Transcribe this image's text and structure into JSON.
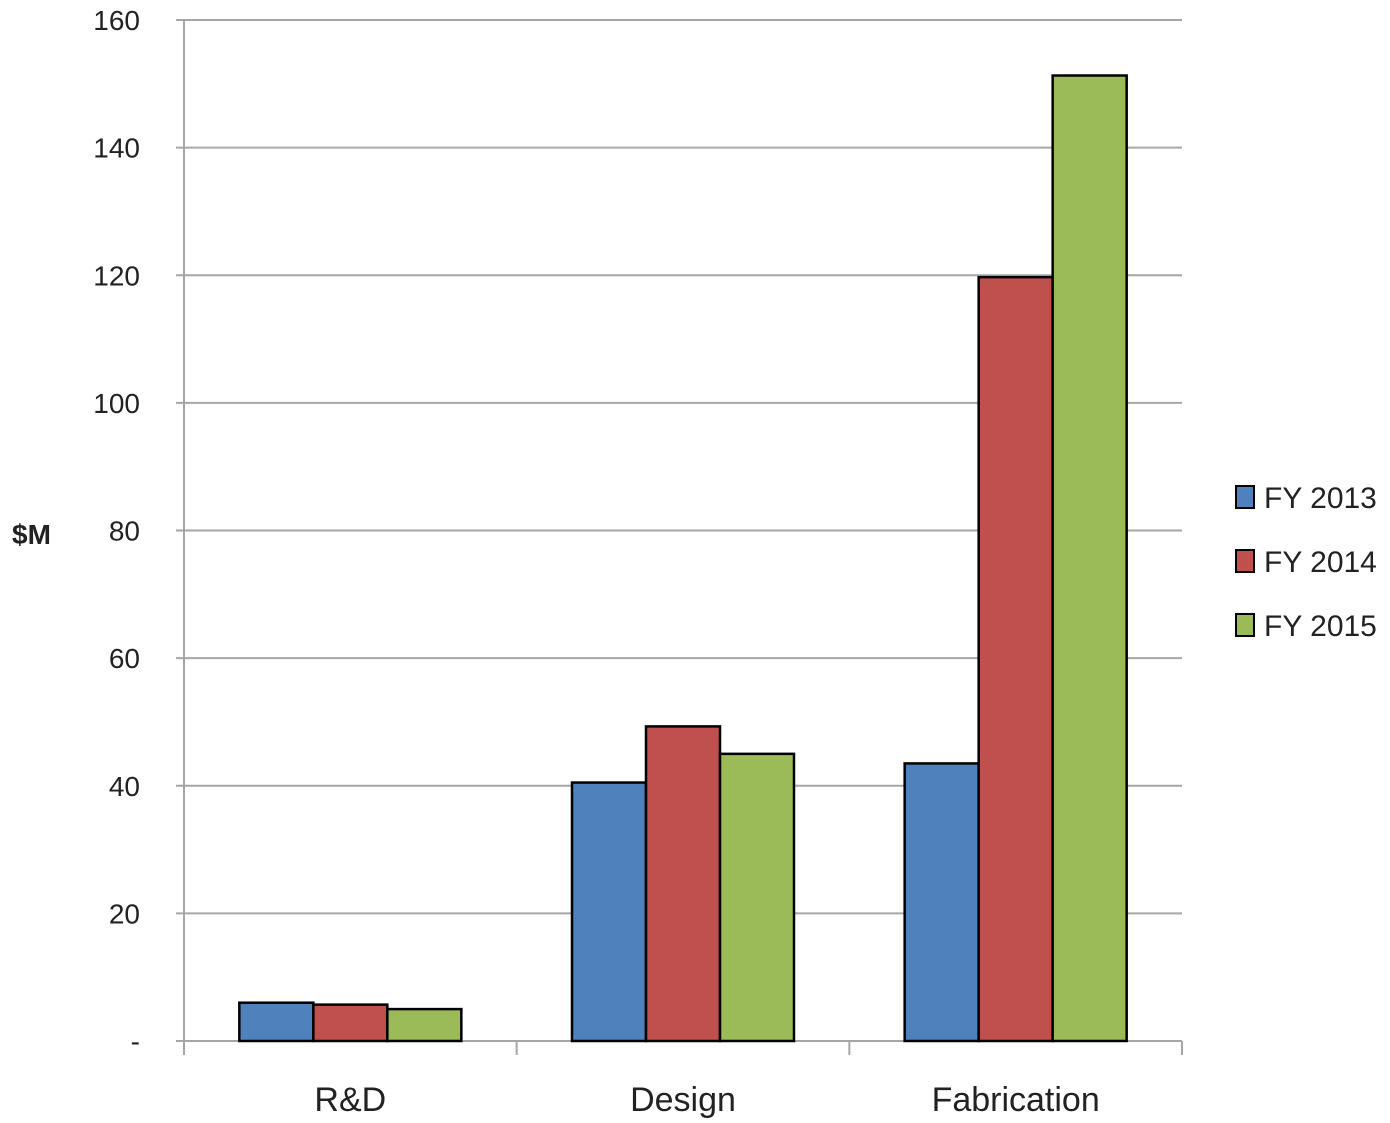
{
  "chart_data": {
    "type": "bar",
    "title": "",
    "xlabel": "",
    "ylabel": "$M",
    "categories": [
      "R&D",
      "Design",
      "Fabrication"
    ],
    "series": [
      {
        "name": "FY 2013",
        "color": "#4f81bd",
        "values": [
          6,
          40.5,
          43.5
        ]
      },
      {
        "name": "FY 2014",
        "color": "#c0504d",
        "values": [
          5.7,
          49.3,
          119.7
        ]
      },
      {
        "name": "FY 2015",
        "color": "#9bbb59",
        "values": [
          5,
          45,
          151.3
        ]
      }
    ],
    "ylim": [
      0,
      160
    ],
    "yticks": [
      0,
      20,
      40,
      60,
      80,
      100,
      120,
      140,
      160
    ],
    "ytick_labels": [
      "-",
      "20",
      "40",
      "60",
      "80",
      "100",
      "120",
      "140",
      "160"
    ],
    "grid": true,
    "legend_position": "right"
  }
}
